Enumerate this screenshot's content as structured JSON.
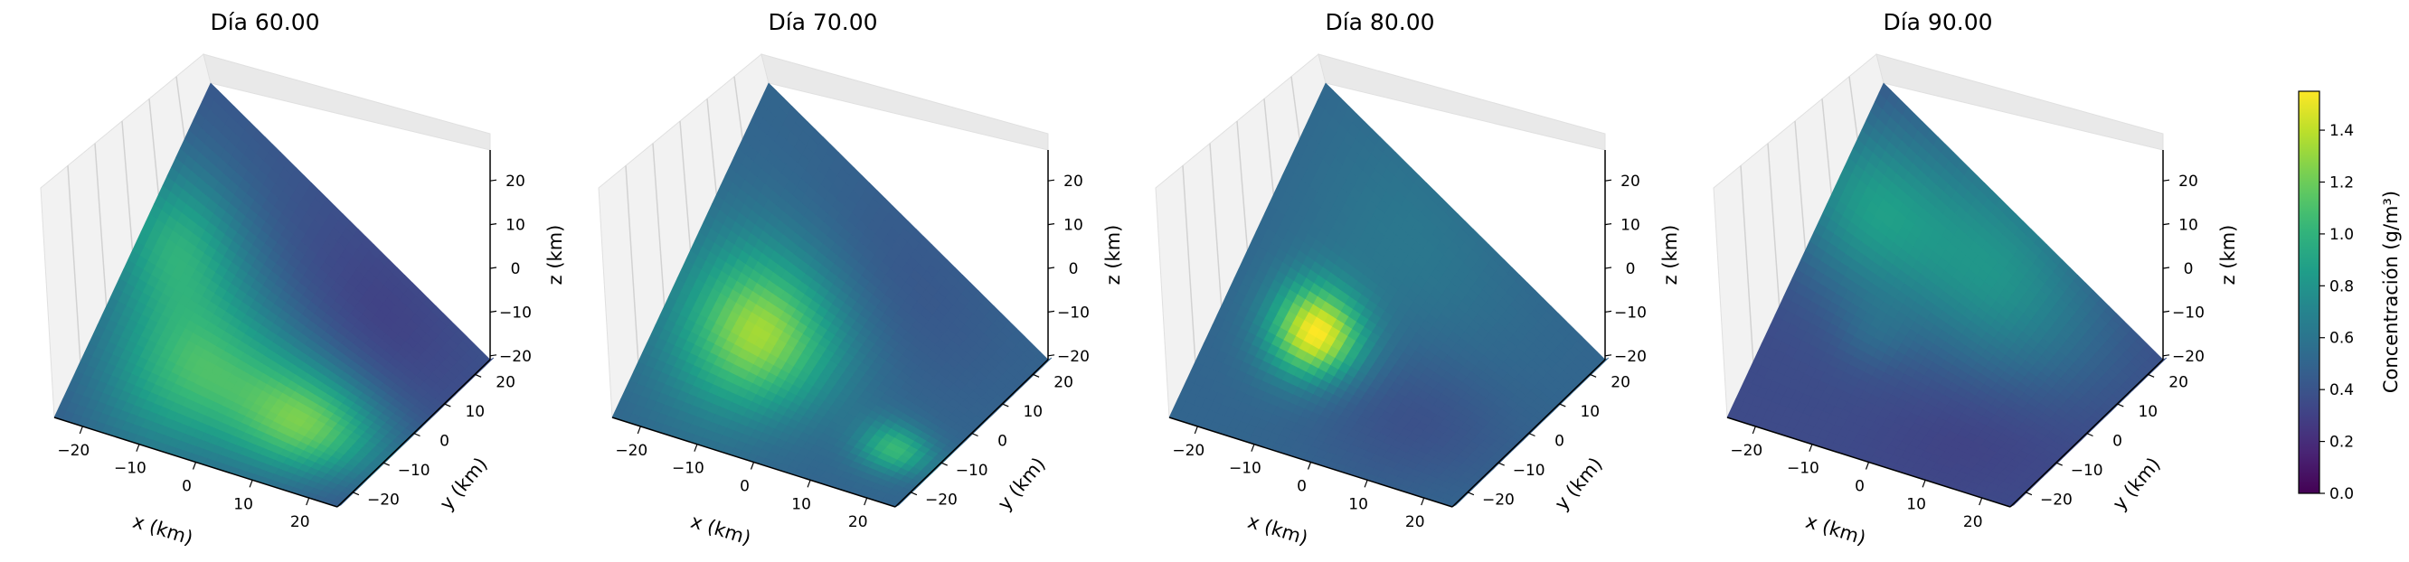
{
  "figure": {
    "colorbar": {
      "label": "Concentración (g/m³)",
      "range": [
        0.0,
        1.55
      ],
      "ticks": [
        "0.0",
        "0.2",
        "0.4",
        "0.6",
        "0.8",
        "1.0",
        "1.2",
        "1.4"
      ],
      "colormap": "viridis"
    }
  },
  "chart_data": [
    {
      "type": "heatmap",
      "title": "Día 60.00",
      "xlabel": "x (km)",
      "ylabel": "y (km)",
      "zlabel": "z (km)",
      "x_ticks": [
        "−20",
        "−10",
        "0",
        "10",
        "20"
      ],
      "y_ticks": [
        "−20",
        "−10",
        "0",
        "10",
        "20"
      ],
      "z_ticks": [
        "−20",
        "−10",
        "0",
        "10",
        "20"
      ],
      "xlim": [
        -25,
        25
      ],
      "ylim": [
        -25,
        25
      ],
      "zlim": [
        -25,
        25
      ],
      "background": 0.42,
      "features": [
        {
          "x": -15,
          "y": 0,
          "value": 0.45,
          "spread": 14
        },
        {
          "x": -8,
          "y": -10,
          "value": 1.05,
          "spread": 10
        },
        {
          "x": 12,
          "y": -10,
          "value": 1.15,
          "spread": 8
        },
        {
          "x": -20,
          "y": 5,
          "value": 0.85,
          "spread": 7
        },
        {
          "x": 10,
          "y": 15,
          "value": 0.3,
          "spread": 12
        }
      ]
    },
    {
      "type": "heatmap",
      "title": "Día 70.00",
      "xlabel": "x (km)",
      "ylabel": "y (km)",
      "zlabel": "z (km)",
      "x_ticks": [
        "−20",
        "−10",
        "0",
        "10",
        "20"
      ],
      "y_ticks": [
        "−20",
        "−10",
        "0",
        "10",
        "20"
      ],
      "z_ticks": [
        "−20",
        "−10",
        "0",
        "10",
        "20"
      ],
      "xlim": [
        -25,
        25
      ],
      "ylim": [
        -25,
        25
      ],
      "zlim": [
        -25,
        25
      ],
      "background": 0.5,
      "features": [
        {
          "x": -10,
          "y": -5,
          "value": 1.3,
          "spread": 9
        },
        {
          "x": -10,
          "y": -5,
          "value": 0.55,
          "spread": 4
        },
        {
          "x": 18,
          "y": -12,
          "value": 1.05,
          "spread": 4
        },
        {
          "x": 5,
          "y": 15,
          "value": 0.42,
          "spread": 12
        }
      ]
    },
    {
      "type": "heatmap",
      "title": "Día 80.00",
      "xlabel": "x (km)",
      "ylabel": "y (km)",
      "zlabel": "z (km)",
      "x_ticks": [
        "−20",
        "−10",
        "0",
        "10",
        "20"
      ],
      "y_ticks": [
        "−20",
        "−10",
        "0",
        "10",
        "20"
      ],
      "z_ticks": [
        "−20",
        "−10",
        "0",
        "10",
        "20"
      ],
      "xlim": [
        -25,
        25
      ],
      "ylim": [
        -25,
        25
      ],
      "zlim": [
        -25,
        25
      ],
      "background": 0.5,
      "features": [
        {
          "x": -10,
          "y": -5,
          "value": 1.55,
          "spread": 5
        },
        {
          "x": 10,
          "y": -10,
          "value": 0.38,
          "spread": 10
        },
        {
          "x": -5,
          "y": 15,
          "value": 0.62,
          "spread": 12
        }
      ]
    },
    {
      "type": "heatmap",
      "title": "Día 90.00",
      "xlabel": "x (km)",
      "ylabel": "y (km)",
      "zlabel": "z (km)",
      "x_ticks": [
        "−20",
        "−10",
        "0",
        "10",
        "20"
      ],
      "y_ticks": [
        "−20",
        "−10",
        "0",
        "10",
        "20"
      ],
      "z_ticks": [
        "−20",
        "−10",
        "0",
        "10",
        "20"
      ],
      "xlim": [
        -25,
        25
      ],
      "ylim": [
        -25,
        25
      ],
      "zlim": [
        -25,
        25
      ],
      "background": 0.35,
      "features": [
        {
          "x": 0,
          "y": 15,
          "value": 0.8,
          "spread": 12
        },
        {
          "x": -20,
          "y": 10,
          "value": 0.75,
          "spread": 8
        },
        {
          "x": -10,
          "y": -5,
          "value": 0.45,
          "spread": 4
        },
        {
          "x": 10,
          "y": -12,
          "value": 0.3,
          "spread": 10
        }
      ]
    }
  ]
}
